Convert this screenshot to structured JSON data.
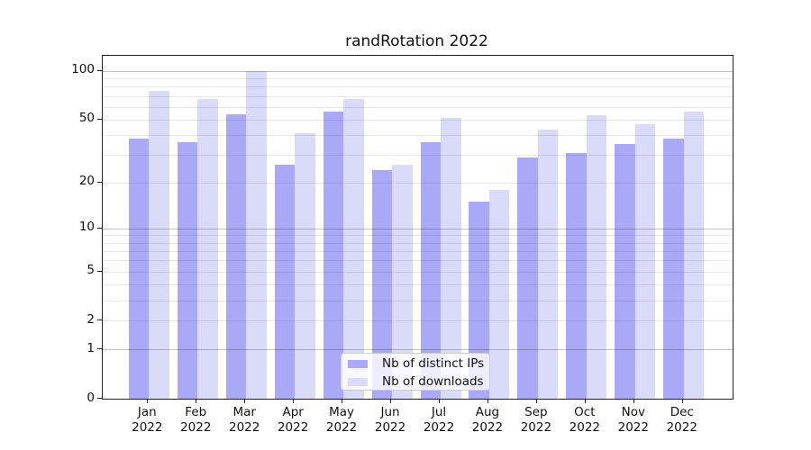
{
  "figure": {
    "title": "randRotation 2022"
  },
  "chart_data": {
    "type": "bar",
    "title": "randRotation 2022",
    "categories": [
      "Jan",
      "Feb",
      "Mar",
      "Apr",
      "May",
      "Jun",
      "Jul",
      "Aug",
      "Sep",
      "Oct",
      "Nov",
      "Dec"
    ],
    "year_label": "2022",
    "series": [
      {
        "name": "Nb of distinct IPs",
        "color": "#a9a9f7",
        "values": [
          38,
          36,
          54,
          26,
          56,
          24,
          36,
          15,
          29,
          31,
          35,
          38
        ]
      },
      {
        "name": "Nb of downloads",
        "color": "#dadaf9",
        "values": [
          75,
          67,
          100,
          41,
          67,
          26,
          51,
          18,
          43,
          53,
          47,
          56
        ]
      }
    ],
    "xlabel": "",
    "ylabel": "",
    "y_scale": "log10(1+y)",
    "ylim": [
      0,
      124
    ],
    "y_tick_values": [
      0,
      1,
      2,
      5,
      10,
      20,
      50,
      100
    ],
    "y_major_gridlines": [
      1,
      10,
      100
    ],
    "y_minor_gridlines": [
      2,
      3,
      4,
      5,
      6,
      7,
      8,
      9,
      20,
      30,
      40,
      50,
      60,
      70,
      80,
      90
    ],
    "grid": true,
    "legend_position": "lower center"
  }
}
